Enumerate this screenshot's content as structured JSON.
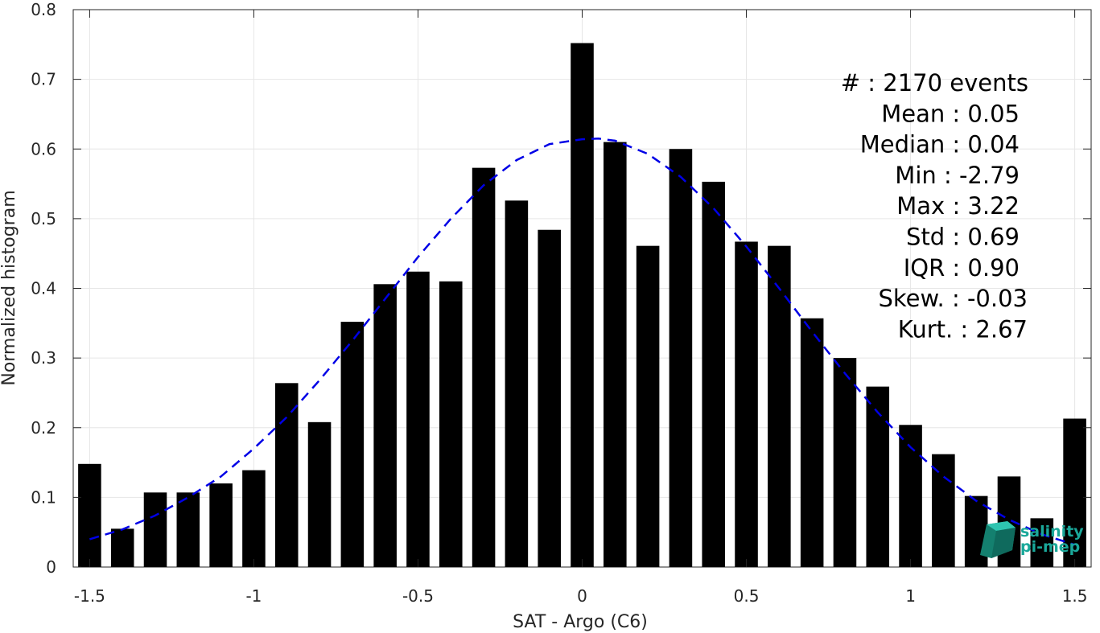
{
  "chart_data": {
    "type": "bar",
    "xlabel": "SAT - Argo (C6)",
    "ylabel": "Normalized histogram",
    "xlim": [
      -1.55,
      1.55
    ],
    "ylim": [
      0,
      0.8
    ],
    "xticks": [
      -1.5,
      -1,
      -0.5,
      0,
      0.5,
      1,
      1.5
    ],
    "xtick_labels": [
      "-1.5",
      "-1",
      "-0.5",
      "0",
      "0.5",
      "1",
      "1.5"
    ],
    "yticks": [
      0,
      0.1,
      0.2,
      0.3,
      0.4,
      0.5,
      0.6,
      0.7,
      0.8
    ],
    "ytick_labels": [
      "0",
      "0.1",
      "0.2",
      "0.3",
      "0.4",
      "0.5",
      "0.6",
      "0.7",
      "0.8"
    ],
    "grid": true,
    "bar_width": 0.07,
    "bar_color": "#000000",
    "x": [
      -1.5,
      -1.4,
      -1.3,
      -1.2,
      -1.1,
      -1.0,
      -0.9,
      -0.8,
      -0.7,
      -0.6,
      -0.5,
      -0.4,
      -0.3,
      -0.2,
      -0.1,
      0.0,
      0.1,
      0.2,
      0.3,
      0.4,
      0.5,
      0.6,
      0.7,
      0.8,
      0.9,
      1.0,
      1.1,
      1.2,
      1.3,
      1.4,
      1.5
    ],
    "values": [
      0.148,
      0.055,
      0.107,
      0.107,
      0.12,
      0.139,
      0.264,
      0.208,
      0.352,
      0.406,
      0.424,
      0.41,
      0.573,
      0.526,
      0.484,
      0.752,
      0.61,
      0.461,
      0.6,
      0.553,
      0.467,
      0.461,
      0.357,
      0.3,
      0.259,
      0.204,
      0.162,
      0.102,
      0.13,
      0.07,
      0.213
    ],
    "fit": {
      "type": "gaussian",
      "color": "#0000e6",
      "style": "dashed",
      "x": [
        -1.5,
        -1.4,
        -1.3,
        -1.2,
        -1.1,
        -1.0,
        -0.9,
        -0.8,
        -0.7,
        -0.6,
        -0.5,
        -0.4,
        -0.3,
        -0.2,
        -0.1,
        0.0,
        0.05,
        0.1,
        0.2,
        0.3,
        0.4,
        0.5,
        0.6,
        0.7,
        0.8,
        0.9,
        1.0,
        1.1,
        1.2,
        1.3,
        1.4,
        1.5
      ],
      "y": [
        0.04,
        0.054,
        0.074,
        0.1,
        0.13,
        0.17,
        0.215,
        0.268,
        0.325,
        0.385,
        0.445,
        0.5,
        0.548,
        0.584,
        0.607,
        0.614,
        0.615,
        0.612,
        0.593,
        0.56,
        0.515,
        0.46,
        0.4,
        0.338,
        0.278,
        0.222,
        0.172,
        0.13,
        0.095,
        0.068,
        0.047,
        0.032
      ]
    },
    "stats": [
      "#  : 2170 events",
      "Mean : 0.05",
      "Median : 0.04",
      "Min : -2.79",
      "Max : 3.22",
      "Std : 0.69",
      "IQR : 0.90",
      "Skew. : -0.03",
      "Kurt. : 2.67"
    ]
  },
  "logo": {
    "line1": "salinity",
    "line2": "pi-mep",
    "color": "#1aa89a"
  }
}
